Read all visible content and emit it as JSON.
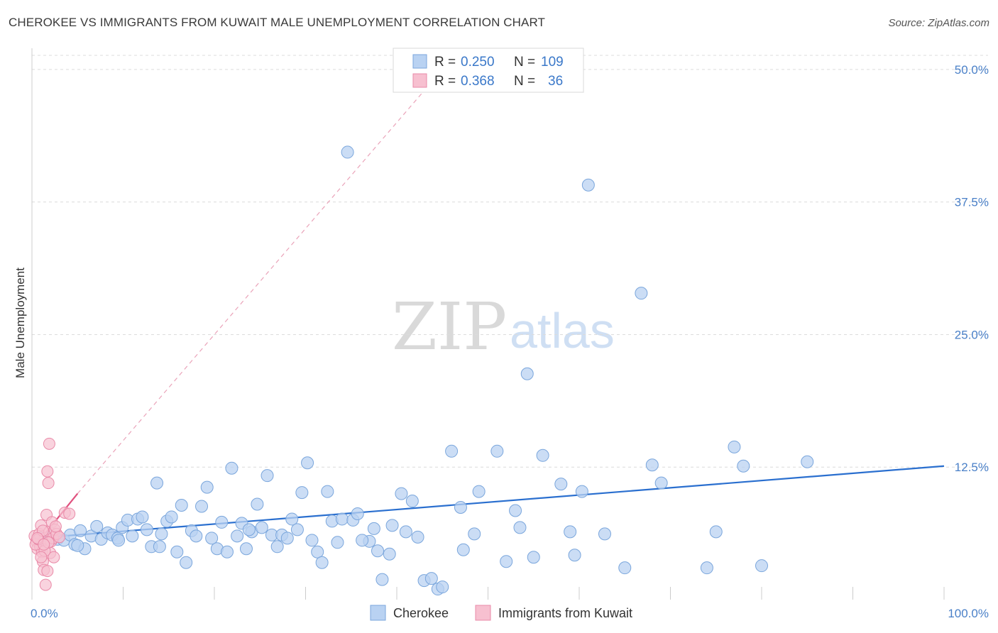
{
  "title": "CHEROKEE VS IMMIGRANTS FROM KUWAIT MALE UNEMPLOYMENT CORRELATION CHART",
  "source": "Source: ZipAtlas.com",
  "watermark": {
    "zip": "ZIP",
    "atlas": "atlas"
  },
  "colors": {
    "blue_fill": "#b9d2f2",
    "blue_stroke": "#7aa6dc",
    "blue_line": "#2a6fcf",
    "pink_fill": "#f7c0d0",
    "pink_stroke": "#e98aa8",
    "pink_line": "#e0507e",
    "grid": "#dcdcdc",
    "axis_text": "#4a80c8"
  },
  "legend": {
    "rows": [
      {
        "r_label": "R = ",
        "r_value": "0.250",
        "n_label": "N = ",
        "n_value": "109"
      },
      {
        "r_label": "R = ",
        "r_value": "0.368",
        "n_label": "N = ",
        "n_value": "36"
      }
    ]
  },
  "chart_data": {
    "type": "scatter",
    "title": "CHEROKEE VS IMMIGRANTS FROM KUWAIT MALE UNEMPLOYMENT CORRELATION CHART",
    "ylabel": "Male Unemployment",
    "xlabel": "",
    "xlim": [
      0,
      100
    ],
    "ylim": [
      0,
      52
    ],
    "x_tick_labels": [
      "0.0%",
      "100.0%"
    ],
    "y_ticks": [
      {
        "value": 12.5,
        "label": "12.5%"
      },
      {
        "value": 25.0,
        "label": "25.0%"
      },
      {
        "value": 37.5,
        "label": "37.5%"
      },
      {
        "value": 50.0,
        "label": "50.0%"
      }
    ],
    "series": [
      {
        "name": "Cherokee",
        "R": 0.25,
        "N": 109,
        "trend": {
          "x": [
            0.5,
            100
          ],
          "y": [
            5.8,
            12.6
          ],
          "style": "solid"
        },
        "points": [
          [
            1.0,
            5.8
          ],
          [
            1.6,
            5.5
          ],
          [
            2.2,
            6.0
          ],
          [
            2.8,
            5.7
          ],
          [
            3.5,
            5.6
          ],
          [
            4.2,
            6.1
          ],
          [
            4.7,
            5.2
          ],
          [
            5.3,
            6.5
          ],
          [
            5.8,
            4.8
          ],
          [
            6.5,
            6.0
          ],
          [
            7.1,
            6.9
          ],
          [
            7.6,
            5.7
          ],
          [
            8.3,
            6.3
          ],
          [
            8.8,
            6.1
          ],
          [
            9.4,
            5.8
          ],
          [
            9.9,
            6.8
          ],
          [
            10.5,
            7.5
          ],
          [
            11.0,
            6.0
          ],
          [
            11.6,
            7.6
          ],
          [
            12.1,
            7.8
          ],
          [
            12.6,
            6.6
          ],
          [
            13.1,
            5.0
          ],
          [
            13.7,
            11.0
          ],
          [
            14.2,
            6.2
          ],
          [
            14.8,
            7.4
          ],
          [
            15.3,
            7.8
          ],
          [
            15.9,
            4.5
          ],
          [
            16.4,
            8.9
          ],
          [
            16.9,
            3.5
          ],
          [
            17.5,
            6.5
          ],
          [
            18.0,
            6.0
          ],
          [
            18.6,
            8.8
          ],
          [
            19.2,
            10.6
          ],
          [
            19.7,
            5.8
          ],
          [
            20.3,
            4.8
          ],
          [
            20.8,
            7.3
          ],
          [
            21.4,
            4.5
          ],
          [
            21.9,
            12.4
          ],
          [
            22.5,
            6.0
          ],
          [
            23.0,
            7.2
          ],
          [
            23.5,
            4.8
          ],
          [
            24.1,
            6.4
          ],
          [
            24.7,
            9.0
          ],
          [
            25.2,
            6.8
          ],
          [
            25.8,
            11.7
          ],
          [
            26.3,
            6.1
          ],
          [
            26.9,
            5.0
          ],
          [
            27.4,
            6.1
          ],
          [
            28.0,
            5.8
          ],
          [
            28.5,
            7.6
          ],
          [
            29.1,
            6.6
          ],
          [
            29.6,
            10.1
          ],
          [
            30.2,
            12.9
          ],
          [
            30.7,
            5.6
          ],
          [
            31.3,
            4.5
          ],
          [
            31.8,
            3.5
          ],
          [
            32.4,
            10.2
          ],
          [
            32.9,
            7.4
          ],
          [
            33.5,
            5.4
          ],
          [
            34.0,
            7.6
          ],
          [
            34.6,
            42.2
          ],
          [
            35.2,
            7.5
          ],
          [
            35.7,
            8.1
          ],
          [
            37.0,
            5.5
          ],
          [
            37.5,
            6.7
          ],
          [
            37.9,
            4.6
          ],
          [
            38.4,
            1.9
          ],
          [
            39.2,
            4.3
          ],
          [
            39.5,
            7.0
          ],
          [
            40.5,
            10.0
          ],
          [
            41.0,
            6.4
          ],
          [
            41.7,
            9.3
          ],
          [
            42.3,
            5.9
          ],
          [
            43.0,
            1.8
          ],
          [
            43.8,
            2.0
          ],
          [
            44.5,
            1.0
          ],
          [
            45.0,
            1.2
          ],
          [
            46.0,
            14.0
          ],
          [
            47.0,
            8.7
          ],
          [
            47.3,
            4.7
          ],
          [
            49.0,
            10.2
          ],
          [
            51.0,
            14.0
          ],
          [
            52.0,
            3.6
          ],
          [
            53.0,
            8.4
          ],
          [
            53.5,
            6.8
          ],
          [
            54.3,
            21.3
          ],
          [
            55.0,
            4.0
          ],
          [
            56.0,
            13.6
          ],
          [
            58.0,
            10.9
          ],
          [
            59.0,
            6.4
          ],
          [
            59.5,
            4.2
          ],
          [
            60.3,
            10.2
          ],
          [
            61.0,
            39.1
          ],
          [
            62.8,
            6.2
          ],
          [
            65.0,
            3.0
          ],
          [
            66.8,
            28.9
          ],
          [
            68.0,
            12.7
          ],
          [
            69.0,
            11.0
          ],
          [
            74.0,
            3.0
          ],
          [
            75.0,
            6.4
          ],
          [
            77.0,
            14.4
          ],
          [
            78.0,
            12.6
          ],
          [
            80.0,
            3.2
          ],
          [
            85.0,
            13.0
          ],
          [
            5.0,
            5.1
          ],
          [
            9.5,
            5.6
          ],
          [
            14.0,
            5.0
          ],
          [
            23.8,
            6.6
          ],
          [
            36.2,
            5.6
          ],
          [
            48.5,
            6.2
          ]
        ]
      },
      {
        "name": "Immigrants from Kuwait",
        "R": 0.368,
        "N": 36,
        "trend": {
          "x": [
            0.3,
            5.0
          ],
          "y": [
            5.0,
            10.0
          ],
          "style": "solid",
          "extension": {
            "x": [
              5.0,
              43.0
            ],
            "y": [
              10.0,
              48.0
            ],
            "style": "dashed"
          }
        },
        "points": [
          [
            0.3,
            6.0
          ],
          [
            0.5,
            5.5
          ],
          [
            0.6,
            4.8
          ],
          [
            0.8,
            6.2
          ],
          [
            0.9,
            5.0
          ],
          [
            1.0,
            7.0
          ],
          [
            1.1,
            4.5
          ],
          [
            1.2,
            3.6
          ],
          [
            1.3,
            2.8
          ],
          [
            1.4,
            5.8
          ],
          [
            1.5,
            1.4
          ],
          [
            1.6,
            8.0
          ],
          [
            1.7,
            12.1
          ],
          [
            1.8,
            11.0
          ],
          [
            1.9,
            14.7
          ],
          [
            1.7,
            2.7
          ],
          [
            1.9,
            6.4
          ],
          [
            2.0,
            4.4
          ],
          [
            2.1,
            5.5
          ],
          [
            2.2,
            7.3
          ],
          [
            2.3,
            5.8
          ],
          [
            2.4,
            4.0
          ],
          [
            2.5,
            6.6
          ],
          [
            2.7,
            6.2
          ],
          [
            0.4,
            5.2
          ],
          [
            0.7,
            5.7
          ],
          [
            1.2,
            6.5
          ],
          [
            1.4,
            4.6
          ],
          [
            1.0,
            4.0
          ],
          [
            0.6,
            5.8
          ],
          [
            1.8,
            5.4
          ],
          [
            2.6,
            6.9
          ],
          [
            3.0,
            5.9
          ],
          [
            3.6,
            8.2
          ],
          [
            4.1,
            8.1
          ],
          [
            1.3,
            5.2
          ]
        ]
      }
    ],
    "legend_items": [
      "Cherokee",
      "Immigrants from Kuwait"
    ]
  }
}
